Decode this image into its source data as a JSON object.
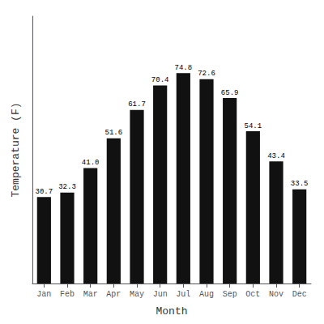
{
  "chart_data": {
    "type": "bar",
    "categories": [
      "Jan",
      "Feb",
      "Mar",
      "Apr",
      "May",
      "Jun",
      "Jul",
      "Aug",
      "Sep",
      "Oct",
      "Nov",
      "Dec"
    ],
    "values": [
      30.7,
      32.3,
      41.0,
      51.6,
      61.7,
      70.4,
      74.8,
      72.6,
      65.9,
      54.1,
      43.4,
      33.5
    ],
    "value_labels": [
      "30.7",
      "32.3",
      "41.0",
      "51.6",
      "61.7",
      "70.4",
      "74.8",
      "72.6",
      "65.9",
      "54.1",
      "43.4",
      "33.5"
    ],
    "color": "#111111",
    "xlabel": "Month",
    "ylabel": "Temperature (F)",
    "ylim": [
      0,
      95
    ],
    "grid": false,
    "data_labels": true,
    "tick_labels": "x"
  }
}
